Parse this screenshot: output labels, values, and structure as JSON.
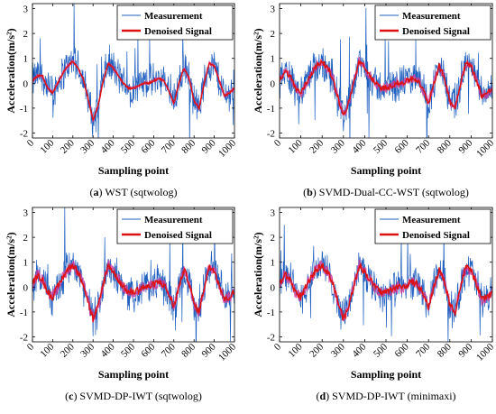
{
  "figure": {
    "caption_a": {
      "letter": "a",
      "text": " WST (sqtwolog)"
    },
    "caption_b": {
      "letter": "b",
      "text": " SVMD-Dual-CC-WST (sqtwolog)"
    },
    "caption_c": {
      "letter": "c",
      "text": " SVMD-DP-IWT (sqtwolog)"
    },
    "caption_d": {
      "letter": "d",
      "text": " SVMD-DP-IWT (minimaxi)"
    }
  },
  "colors": {
    "measurement": "#1f5fbf",
    "denoised": "#dd1111",
    "band": "#d0399a"
  },
  "chart_data": [
    {
      "type": "line",
      "panel": "a",
      "xlabel": "Sampling point",
      "ylabel": "Acceleration(m/s²)",
      "xlim": [
        0,
        1000
      ],
      "ylim": [
        -2.2,
        3.2
      ],
      "xticks": [
        0,
        100,
        200,
        300,
        400,
        500,
        600,
        700,
        800,
        900,
        1000
      ],
      "yticks": [
        -2,
        -1,
        0,
        1,
        2,
        3
      ],
      "grid": false,
      "legend": "top-right",
      "series": [
        {
          "name": "Measurement",
          "spread": 0.55
        },
        {
          "name": "Denoised Signal",
          "x": [
            0,
            25,
            50,
            75,
            100,
            125,
            150,
            175,
            200,
            225,
            250,
            275,
            300,
            325,
            350,
            375,
            400,
            425,
            450,
            475,
            500,
            525,
            550,
            575,
            600,
            625,
            650,
            675,
            700,
            725,
            750,
            775,
            800,
            825,
            850,
            875,
            900,
            925,
            950,
            975,
            1000
          ],
          "values": [
            0.1,
            0.3,
            0.3,
            -0.2,
            -0.4,
            0.0,
            0.4,
            0.7,
            0.9,
            0.6,
            0.2,
            -0.6,
            -1.5,
            -0.9,
            0.1,
            0.8,
            0.6,
            0.3,
            0.0,
            -0.2,
            -0.2,
            -0.1,
            0.0,
            0.0,
            0.1,
            0.2,
            0.1,
            -0.3,
            -0.8,
            0.0,
            0.6,
            0.2,
            -0.7,
            -1.0,
            0.0,
            0.8,
            0.7,
            0.1,
            -0.5,
            -0.4,
            -0.2
          ],
          "band": 0.06
        }
      ]
    },
    {
      "type": "line",
      "panel": "b",
      "xlabel": "Sampling point",
      "ylabel": "Acceleration(m/s²)",
      "xlim": [
        0,
        1000
      ],
      "ylim": [
        -2.2,
        3.2
      ],
      "xticks": [
        0,
        100,
        200,
        300,
        400,
        500,
        600,
        700,
        800,
        900,
        1000
      ],
      "yticks": [
        -2,
        -1,
        0,
        1,
        2,
        3
      ],
      "grid": false,
      "legend": "top-right",
      "series": [
        {
          "name": "Measurement",
          "spread": 0.55
        },
        {
          "name": "Denoised Signal",
          "x": [
            0,
            25,
            50,
            75,
            100,
            125,
            150,
            175,
            200,
            225,
            250,
            275,
            300,
            325,
            350,
            375,
            400,
            425,
            450,
            475,
            500,
            525,
            550,
            575,
            600,
            625,
            650,
            675,
            700,
            725,
            750,
            775,
            800,
            825,
            850,
            875,
            900,
            925,
            950,
            975,
            1000
          ],
          "values": [
            0.1,
            0.5,
            0.3,
            -0.2,
            -0.4,
            0.0,
            0.4,
            0.7,
            0.9,
            0.6,
            0.2,
            -0.6,
            -1.3,
            -0.8,
            0.1,
            0.9,
            0.6,
            0.3,
            0.0,
            -0.2,
            -0.2,
            -0.1,
            0.0,
            0.0,
            0.1,
            0.2,
            0.1,
            -0.3,
            -0.8,
            0.0,
            0.7,
            0.2,
            -0.7,
            -1.0,
            0.0,
            0.8,
            0.7,
            0.1,
            -0.5,
            -0.4,
            -0.2
          ],
          "band": 0.18
        }
      ]
    },
    {
      "type": "line",
      "panel": "c",
      "xlabel": "Sampling point",
      "ylabel": "Acceleration(m/s²)",
      "xlim": [
        0,
        1000
      ],
      "ylim": [
        -2.2,
        3.2
      ],
      "xticks": [
        0,
        100,
        200,
        300,
        400,
        500,
        600,
        700,
        800,
        900,
        1000
      ],
      "yticks": [
        -2,
        -1,
        0,
        1,
        2,
        3
      ],
      "grid": false,
      "legend": "top-right",
      "series": [
        {
          "name": "Measurement",
          "spread": 0.55
        },
        {
          "name": "Denoised Signal",
          "x": [
            0,
            25,
            50,
            75,
            100,
            125,
            150,
            175,
            200,
            225,
            250,
            275,
            300,
            325,
            350,
            375,
            400,
            425,
            450,
            475,
            500,
            525,
            550,
            575,
            600,
            625,
            650,
            675,
            700,
            725,
            750,
            775,
            800,
            825,
            850,
            875,
            900,
            925,
            950,
            975,
            1000
          ],
          "values": [
            0.1,
            0.5,
            0.3,
            -0.2,
            -0.4,
            0.0,
            0.4,
            0.7,
            0.9,
            0.6,
            0.2,
            -0.6,
            -1.3,
            -0.8,
            0.1,
            0.9,
            0.6,
            0.3,
            0.0,
            -0.2,
            -0.2,
            -0.1,
            0.0,
            0.0,
            0.1,
            0.2,
            0.1,
            -0.3,
            -0.8,
            0.0,
            0.7,
            0.2,
            -0.7,
            -1.0,
            0.0,
            0.8,
            0.7,
            0.1,
            -0.5,
            -0.4,
            -0.2
          ],
          "band": 0.22
        }
      ]
    },
    {
      "type": "line",
      "panel": "d",
      "xlabel": "Sampling point",
      "ylabel": "Acceleration(m/s²)",
      "xlim": [
        0,
        1000
      ],
      "ylim": [
        -2.2,
        3.2
      ],
      "xticks": [
        0,
        100,
        200,
        300,
        400,
        500,
        600,
        700,
        800,
        900,
        1000
      ],
      "yticks": [
        -2,
        -1,
        0,
        1,
        2,
        3
      ],
      "grid": false,
      "legend": "top-right",
      "series": [
        {
          "name": "Measurement",
          "spread": 0.55
        },
        {
          "name": "Denoised Signal",
          "x": [
            0,
            25,
            50,
            75,
            100,
            125,
            150,
            175,
            200,
            225,
            250,
            275,
            300,
            325,
            350,
            375,
            400,
            425,
            450,
            475,
            500,
            525,
            550,
            575,
            600,
            625,
            650,
            675,
            700,
            725,
            750,
            775,
            800,
            825,
            850,
            875,
            900,
            925,
            950,
            975,
            1000
          ],
          "values": [
            0.1,
            0.5,
            0.3,
            -0.2,
            -0.4,
            0.0,
            0.4,
            0.7,
            0.9,
            0.6,
            0.2,
            -0.6,
            -1.3,
            -0.8,
            0.1,
            0.9,
            0.6,
            0.3,
            0.0,
            -0.2,
            -0.2,
            -0.1,
            0.0,
            0.0,
            0.1,
            0.2,
            0.1,
            -0.3,
            -0.8,
            0.0,
            0.7,
            0.2,
            -0.7,
            -1.0,
            0.0,
            0.8,
            0.7,
            0.1,
            -0.5,
            -0.4,
            -0.2
          ],
          "band": 0.22
        }
      ]
    }
  ]
}
